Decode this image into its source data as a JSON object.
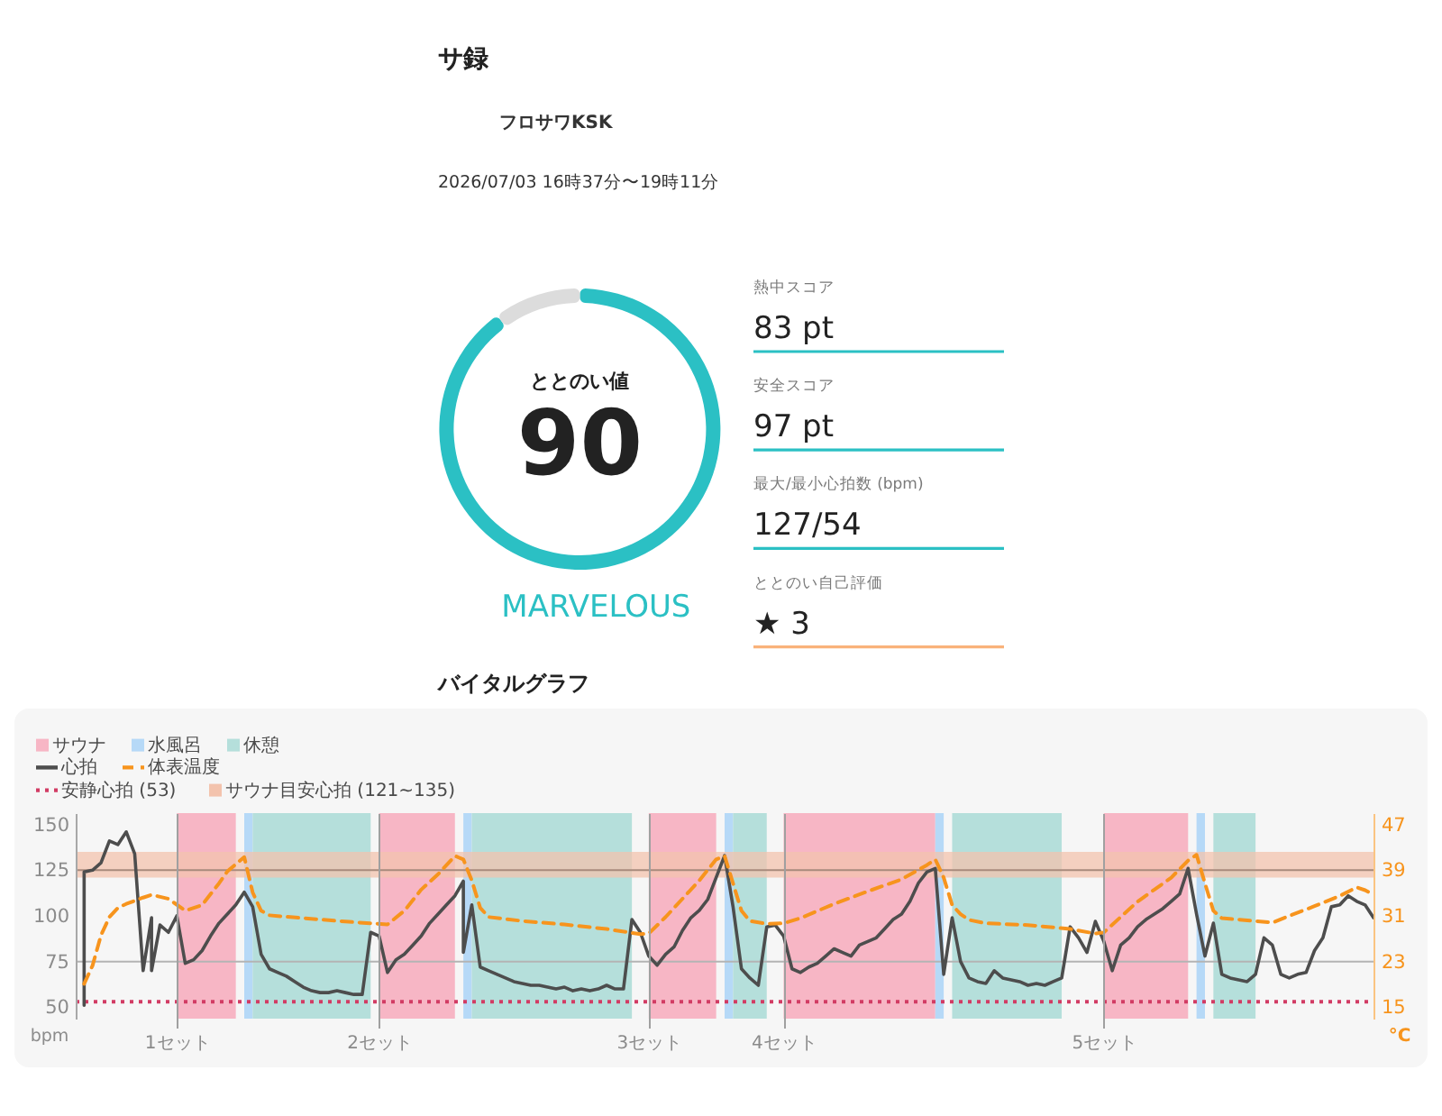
{
  "chart_data": [
    {
      "type": "other",
      "title": "サ録",
      "annotations": [
        "フロサワKSK",
        "2026/07/03 16時37分〜19時11分"
      ]
    },
    {
      "type": "donut",
      "title": "ととのい値",
      "categories": [
        null,
        null
      ],
      "values": [
        90,
        10
      ],
      "colors": [
        "#2bc0c4",
        "#dcdcdc"
      ],
      "value_labels": [
        "90",
        null
      ],
      "annotations": [
        "MARVELOUS"
      ]
    },
    {
      "type": "other",
      "categories": [
        "熱中スコア",
        "安全スコア",
        "最大/最小心拍数 (bpm)",
        "ととのい自己評価"
      ],
      "value_labels": [
        "83 pt",
        "97 pt",
        "127/54",
        "★ 3"
      ],
      "colors": [
        "#2bc0c4",
        "#2bc0c4",
        "#2bc0c4",
        "#f9b27a"
      ]
    },
    {
      "type": "line",
      "title": "バイタルグラフ",
      "ylabel": "bpm",
      "y2label": "°C",
      "legend": "top left",
      "grid": "x",
      "xlim": [
        "2026-07-03T16:37",
        "2026-07-03T19:11"
      ],
      "xticks": [
        {
          "value": "2026-07-03T16:49",
          "label": "1セット"
        },
        {
          "value": "2026-07-03T17:13",
          "label": "2セット"
        },
        {
          "value": "2026-07-03T17:45",
          "label": "3セット"
        },
        {
          "value": "2026-07-03T18:01",
          "label": "4セット"
        },
        {
          "value": "2026-07-03T18:39",
          "label": "5セット"
        }
      ],
      "ylim": [
        43.75,
        156.25
      ],
      "yticks": [
        50,
        75,
        100,
        125,
        150
      ],
      "y2lim": [
        13,
        49
      ],
      "y2ticks": [
        15,
        23,
        31,
        39,
        47
      ],
      "series": [
        {
          "name": "心拍",
          "color": "#4d4d4d",
          "x": [
            "2026-07-03T16:38",
            "2026-07-03T16:38",
            "2026-07-03T16:39",
            "2026-07-03T16:40",
            "2026-07-03T16:41",
            "2026-07-03T16:42",
            "2026-07-03T16:43",
            "2026-07-03T16:44",
            "2026-07-03T16:45",
            "2026-07-03T16:46",
            "2026-07-03T16:46",
            "2026-07-03T16:47",
            "2026-07-03T16:48",
            "2026-07-03T16:49",
            "2026-07-03T16:50",
            "2026-07-03T16:51",
            "2026-07-03T16:52",
            "2026-07-03T16:53",
            "2026-07-03T16:54",
            "2026-07-03T16:55",
            "2026-07-03T16:56",
            "2026-07-03T16:57",
            "2026-07-03T16:58",
            "2026-07-03T16:59",
            "2026-07-03T17:00",
            "2026-07-03T17:01",
            "2026-07-03T17:02",
            "2026-07-03T17:03",
            "2026-07-03T17:04",
            "2026-07-03T17:05",
            "2026-07-03T17:06",
            "2026-07-03T17:07",
            "2026-07-03T17:08",
            "2026-07-03T17:09",
            "2026-07-03T17:10",
            "2026-07-03T17:11",
            "2026-07-03T17:12",
            "2026-07-03T17:13",
            "2026-07-03T17:14",
            "2026-07-03T17:15",
            "2026-07-03T17:16",
            "2026-07-03T17:17",
            "2026-07-03T17:18",
            "2026-07-03T17:19",
            "2026-07-03T17:20",
            "2026-07-03T17:21",
            "2026-07-03T17:22",
            "2026-07-03T17:23",
            "2026-07-03T17:23",
            "2026-07-03T17:24",
            "2026-07-03T17:25",
            "2026-07-03T17:26",
            "2026-07-03T17:27",
            "2026-07-03T17:28",
            "2026-07-03T17:29",
            "2026-07-03T17:30",
            "2026-07-03T17:31",
            "2026-07-03T17:32",
            "2026-07-03T17:33",
            "2026-07-03T17:34",
            "2026-07-03T17:35",
            "2026-07-03T17:36",
            "2026-07-03T17:37",
            "2026-07-03T17:38",
            "2026-07-03T17:39",
            "2026-07-03T17:40",
            "2026-07-03T17:41",
            "2026-07-03T17:42",
            "2026-07-03T17:43",
            "2026-07-03T17:44",
            "2026-07-03T17:45",
            "2026-07-03T17:46",
            "2026-07-03T17:47",
            "2026-07-03T17:48",
            "2026-07-03T17:49",
            "2026-07-03T17:50",
            "2026-07-03T17:51",
            "2026-07-03T17:52",
            "2026-07-03T17:53",
            "2026-07-03T17:54",
            "2026-07-03T17:55",
            "2026-07-03T17:56",
            "2026-07-03T17:57",
            "2026-07-03T17:58",
            "2026-07-03T17:59",
            "2026-07-03T18:00",
            "2026-07-03T18:01",
            "2026-07-03T18:02",
            "2026-07-03T18:03",
            "2026-07-03T18:04",
            "2026-07-03T18:05",
            "2026-07-03T18:06",
            "2026-07-03T18:07",
            "2026-07-03T18:08",
            "2026-07-03T18:09",
            "2026-07-03T18:10",
            "2026-07-03T18:11",
            "2026-07-03T18:12",
            "2026-07-03T18:13",
            "2026-07-03T18:14",
            "2026-07-03T18:15",
            "2026-07-03T18:16",
            "2026-07-03T18:17",
            "2026-07-03T18:18",
            "2026-07-03T18:19",
            "2026-07-03T18:20",
            "2026-07-03T18:21",
            "2026-07-03T18:22",
            "2026-07-03T18:23",
            "2026-07-03T18:24",
            "2026-07-03T18:25",
            "2026-07-03T18:26",
            "2026-07-03T18:27",
            "2026-07-03T18:28",
            "2026-07-03T18:29",
            "2026-07-03T18:30",
            "2026-07-03T18:31",
            "2026-07-03T18:32",
            "2026-07-03T18:33",
            "2026-07-03T18:34",
            "2026-07-03T18:35",
            "2026-07-03T18:36",
            "2026-07-03T18:37",
            "2026-07-03T18:38",
            "2026-07-03T18:39",
            "2026-07-03T18:40",
            "2026-07-03T18:41",
            "2026-07-03T18:42",
            "2026-07-03T18:43",
            "2026-07-03T18:44",
            "2026-07-03T18:45",
            "2026-07-03T18:46",
            "2026-07-03T18:47",
            "2026-07-03T18:48",
            "2026-07-03T18:49",
            "2026-07-03T18:50",
            "2026-07-03T18:51",
            "2026-07-03T18:52",
            "2026-07-03T18:53",
            "2026-07-03T18:54",
            "2026-07-03T18:55",
            "2026-07-03T18:56",
            "2026-07-03T18:57",
            "2026-07-03T18:58",
            "2026-07-03T18:59",
            "2026-07-03T19:00",
            "2026-07-03T19:01",
            "2026-07-03T19:02",
            "2026-07-03T19:03",
            "2026-07-03T19:04",
            "2026-07-03T19:05",
            "2026-07-03T19:06",
            "2026-07-03T19:07",
            "2026-07-03T19:08",
            "2026-07-03T19:09",
            "2026-07-03T19:10",
            "2026-07-03T19:11"
          ],
          "values": [
            51,
            124,
            125,
            129,
            141,
            139,
            146,
            134,
            70,
            99,
            70,
            95,
            91,
            100,
            74,
            76,
            81,
            89,
            96,
            101,
            106,
            113,
            105,
            79,
            71,
            69,
            67,
            64,
            61,
            59,
            58,
            58,
            59,
            58,
            57,
            57,
            91,
            89,
            69,
            76,
            79,
            84,
            89,
            96,
            101,
            106,
            111,
            119,
            80,
            106,
            72,
            70,
            68,
            66,
            64,
            63,
            62,
            62,
            61,
            60,
            61,
            59,
            60,
            59,
            60,
            62,
            60,
            60,
            98,
            91,
            78,
            73,
            79,
            83,
            92,
            99,
            103,
            109,
            121,
            133,
            105,
            71,
            66,
            62,
            94,
            95,
            89,
            71,
            69,
            72,
            74,
            78,
            82,
            80,
            78,
            84,
            86,
            88,
            93,
            98,
            101,
            108,
            118,
            124,
            126,
            68,
            99,
            75,
            66,
            64,
            63,
            70,
            66,
            65,
            64,
            62,
            63,
            62,
            64,
            66,
            94,
            88,
            80,
            97,
            86,
            70,
            84,
            88,
            94,
            98,
            101,
            104,
            108,
            112,
            126,
            101,
            78,
            96,
            68,
            66,
            65,
            64,
            68,
            88,
            84,
            68,
            66,
            68,
            69,
            81,
            88,
            105,
            106,
            111,
            108,
            106,
            99
          ]
        },
        {
          "name": "体表温度",
          "color": "#f7941d",
          "axis": "y2",
          "line_style": "dashed",
          "x": [
            "2026-07-03T16:38",
            "2026-07-03T16:39",
            "2026-07-03T16:40",
            "2026-07-03T16:41",
            "2026-07-03T16:42",
            "2026-07-03T16:43",
            "2026-07-03T16:45",
            "2026-07-03T16:46",
            "2026-07-03T16:48",
            "2026-07-03T16:50",
            "2026-07-03T16:52",
            "2026-07-03T16:54",
            "2026-07-03T16:55",
            "2026-07-03T16:57",
            "2026-07-03T16:58",
            "2026-07-03T16:59",
            "2026-07-03T17:00",
            "2026-07-03T17:04",
            "2026-07-03T17:09",
            "2026-07-03T17:14",
            "2026-07-03T17:16",
            "2026-07-03T17:18",
            "2026-07-03T17:20",
            "2026-07-03T17:22",
            "2026-07-03T17:23",
            "2026-07-03T17:24",
            "2026-07-03T17:25",
            "2026-07-03T17:26",
            "2026-07-03T17:30",
            "2026-07-03T17:35",
            "2026-07-03T17:40",
            "2026-07-03T17:44",
            "2026-07-03T17:45",
            "2026-07-03T17:47",
            "2026-07-03T17:49",
            "2026-07-03T17:51",
            "2026-07-03T17:53",
            "2026-07-03T17:54",
            "2026-07-03T17:55",
            "2026-07-03T17:56",
            "2026-07-03T17:57",
            "2026-07-03T17:59",
            "2026-07-03T18:01",
            "2026-07-03T18:03",
            "2026-07-03T18:07",
            "2026-07-03T18:11",
            "2026-07-03T18:15",
            "2026-07-03T18:18",
            "2026-07-03T18:19",
            "2026-07-03T18:20",
            "2026-07-03T18:21",
            "2026-07-03T18:22",
            "2026-07-03T18:23",
            "2026-07-03T18:25",
            "2026-07-03T18:30",
            "2026-07-03T18:35",
            "2026-07-03T18:38",
            "2026-07-03T18:39",
            "2026-07-03T18:41",
            "2026-07-03T18:43",
            "2026-07-03T18:45",
            "2026-07-03T18:47",
            "2026-07-03T18:49",
            "2026-07-03T18:50",
            "2026-07-03T18:51",
            "2026-07-03T18:52",
            "2026-07-03T18:53",
            "2026-07-03T18:57",
            "2026-07-03T18:59",
            "2026-07-03T19:01",
            "2026-07-03T19:04",
            "2026-07-03T19:07",
            "2026-07-03T19:09",
            "2026-07-03T19:10",
            "2026-07-03T19:11"
          ],
          "values": [
            19.1,
            22.3,
            27.6,
            30.8,
            32.4,
            33.1,
            34.2,
            34.7,
            34.0,
            31.9,
            32.9,
            36.7,
            38.8,
            41.3,
            35.1,
            31.9,
            31.1,
            30.6,
            30.0,
            29.5,
            31.9,
            35.6,
            38.3,
            41.5,
            40.9,
            37.2,
            32.4,
            30.8,
            30.1,
            29.5,
            28.7,
            27.8,
            27.9,
            30.8,
            34.0,
            37.2,
            40.9,
            41.5,
            36.7,
            31.9,
            30.1,
            29.6,
            29.7,
            30.6,
            33.1,
            35.3,
            37.4,
            39.9,
            40.9,
            37.7,
            32.9,
            31.3,
            30.3,
            29.7,
            29.4,
            28.7,
            27.9,
            28.1,
            30.8,
            33.5,
            35.6,
            37.7,
            40.7,
            41.7,
            36.7,
            31.9,
            30.6,
            30.1,
            29.8,
            31.0,
            32.7,
            34.5,
            36.0,
            35.5,
            34.7
          ]
        }
      ],
      "bands": [
        {
          "axis": "x",
          "from": "2026-07-03T16:49",
          "to": "2026-07-03T16:56",
          "label": "サウナ",
          "color": "#f7b6c5"
        },
        {
          "axis": "x",
          "from": "2026-07-03T16:57",
          "to": "2026-07-03T16:58",
          "label": "水風呂",
          "color": "#b6d9f7"
        },
        {
          "axis": "x",
          "from": "2026-07-03T16:58",
          "to": "2026-07-03T17:12",
          "label": "休憩",
          "color": "#b5dfdb"
        },
        {
          "axis": "x",
          "from": "2026-07-03T17:13",
          "to": "2026-07-03T17:22",
          "color": "#f7b6c5"
        },
        {
          "axis": "x",
          "from": "2026-07-03T17:23",
          "to": "2026-07-03T17:24",
          "color": "#b6d9f7"
        },
        {
          "axis": "x",
          "from": "2026-07-03T17:24",
          "to": "2026-07-03T17:43",
          "color": "#b5dfdb"
        },
        {
          "axis": "x",
          "from": "2026-07-03T17:45",
          "to": "2026-07-03T17:53",
          "color": "#f7b6c5"
        },
        {
          "axis": "x",
          "from": "2026-07-03T17:54",
          "to": "2026-07-03T17:55",
          "color": "#b6d9f7"
        },
        {
          "axis": "x",
          "from": "2026-07-03T17:55",
          "to": "2026-07-03T17:59",
          "color": "#b5dfdb"
        },
        {
          "axis": "x",
          "from": "2026-07-03T18:01",
          "to": "2026-07-03T18:19",
          "color": "#f7b6c5"
        },
        {
          "axis": "x",
          "from": "2026-07-03T18:19",
          "to": "2026-07-03T18:20",
          "color": "#b6d9f7"
        },
        {
          "axis": "x",
          "from": "2026-07-03T18:21",
          "to": "2026-07-03T18:34",
          "color": "#b5dfdb"
        },
        {
          "axis": "x",
          "from": "2026-07-03T18:39",
          "to": "2026-07-03T18:49",
          "color": "#f7b6c5"
        },
        {
          "axis": "x",
          "from": "2026-07-03T18:50",
          "to": "2026-07-03T18:51",
          "color": "#b6d9f7"
        },
        {
          "axis": "x",
          "from": "2026-07-03T18:52",
          "to": "2026-07-03T18:57",
          "color": "#b5dfdb"
        },
        {
          "axis": "y",
          "from": 121,
          "to": 135,
          "label": "サウナ目安心拍 (121~135)",
          "color": "#f3c3ad"
        }
      ],
      "ref_lines": [
        {
          "axis": "y",
          "value": 53,
          "label": "安静心拍 (53)",
          "color": "#d23c64",
          "line_style": "dotted"
        },
        {
          "axis": "y",
          "value": 75,
          "color": "#b4b4b4"
        },
        {
          "axis": "y",
          "value": 125,
          "color": "#a88a7c"
        }
      ]
    }
  ]
}
